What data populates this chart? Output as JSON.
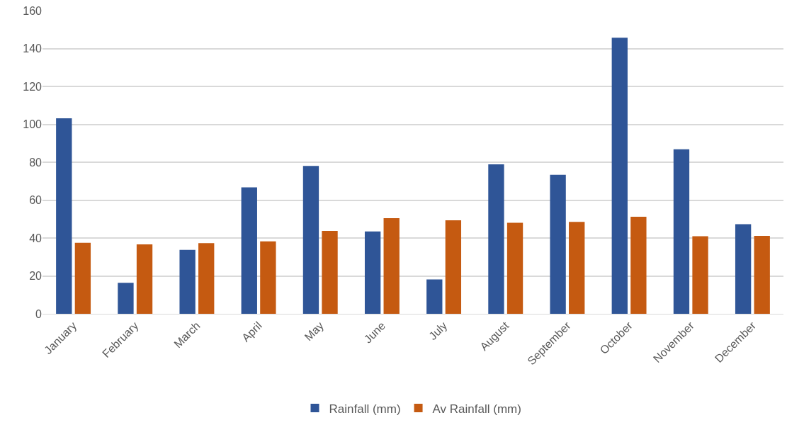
{
  "chart_data": {
    "type": "bar",
    "categories": [
      "January",
      "February",
      "March",
      "April",
      "May",
      "June",
      "July",
      "August",
      "September",
      "October",
      "November",
      "December"
    ],
    "series": [
      {
        "name": "Rainfall (mm)",
        "color": "#2f5597",
        "values": [
          103.2,
          16.4,
          33.7,
          66.7,
          78.0,
          43.5,
          18.1,
          78.9,
          73.4,
          145.7,
          86.8,
          47.3
        ]
      },
      {
        "name": "Av Rainfall (mm)",
        "color": "#c55a11",
        "values": [
          37.5,
          36.6,
          37.3,
          38.2,
          43.7,
          50.5,
          49.3,
          48.0,
          48.5,
          51.2,
          40.9,
          41.1
        ]
      }
    ],
    "ylim": [
      0,
      160
    ],
    "yticks": [
      0,
      20,
      40,
      60,
      80,
      100,
      120,
      140,
      160
    ],
    "grid": "y",
    "legend": "bottom"
  }
}
